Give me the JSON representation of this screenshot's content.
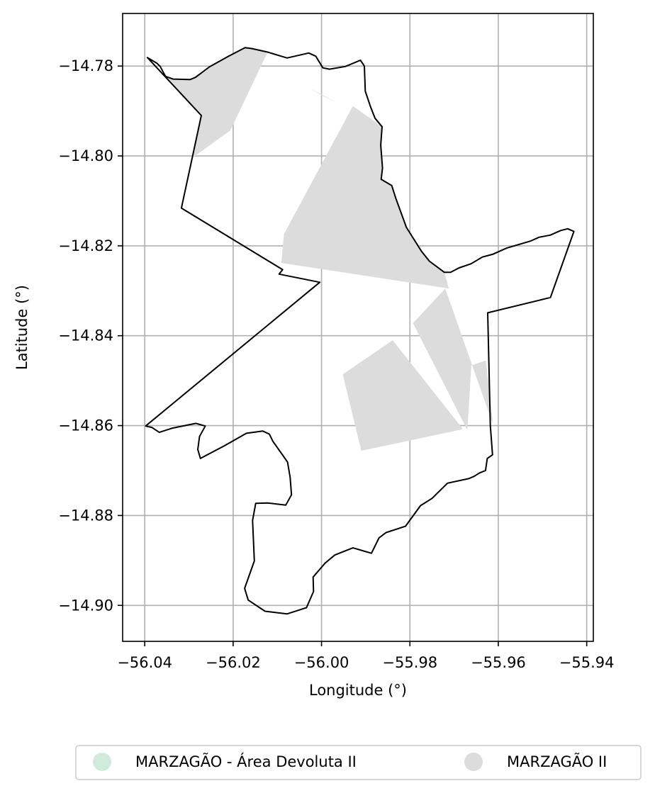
{
  "chart_data": {
    "type": "map",
    "xlabel": "Longitude (°)",
    "ylabel": "Latitude (°)",
    "xlim": [
      -56.045,
      -55.9385
    ],
    "ylim": [
      -14.908,
      -14.7683
    ],
    "xticks": [
      -56.04,
      -56.02,
      -56.0,
      -55.98,
      -55.96,
      -55.94
    ],
    "xtick_labels": [
      "−56.04",
      "−56.02",
      "−56.00",
      "−55.98",
      "−55.96",
      "−55.94"
    ],
    "yticks": [
      -14.78,
      -14.8,
      -14.82,
      -14.84,
      -14.86,
      -14.88,
      -14.9
    ],
    "ytick_labels": [
      "−14.78",
      "−14.80",
      "−14.82",
      "−14.84",
      "−14.86",
      "−14.88",
      "−14.90"
    ],
    "grid": true,
    "boundary": {
      "name": "municipality boundary",
      "color": "#000000",
      "coords": [
        [
          -56.0394,
          -14.7781
        ],
        [
          -56.0372,
          -14.7794
        ],
        [
          -56.0365,
          -14.7801
        ],
        [
          -56.0353,
          -14.7823
        ],
        [
          -56.0336,
          -14.7829
        ],
        [
          -56.0297,
          -14.783
        ],
        [
          -56.0285,
          -14.7825
        ],
        [
          -56.0254,
          -14.7802
        ],
        [
          -56.0212,
          -14.7779
        ],
        [
          -56.0173,
          -14.7759
        ],
        [
          -56.0158,
          -14.7761
        ],
        [
          -56.0122,
          -14.7769
        ],
        [
          -56.0078,
          -14.7782
        ],
        [
          -56.0029,
          -14.7771
        ],
        [
          -56.0013,
          -14.7778
        ],
        [
          -55.9997,
          -14.7804
        ],
        [
          -55.9982,
          -14.7807
        ],
        [
          -55.9946,
          -14.7801
        ],
        [
          -55.9912,
          -14.7787
        ],
        [
          -55.9903,
          -14.78
        ],
        [
          -55.9901,
          -14.7856
        ],
        [
          -55.9889,
          -14.7891
        ],
        [
          -55.9879,
          -14.7916
        ],
        [
          -55.9863,
          -14.7935
        ],
        [
          -55.9866,
          -14.7976
        ],
        [
          -55.9862,
          -14.8027
        ],
        [
          -55.9865,
          -14.8052
        ],
        [
          -55.9841,
          -14.8066
        ],
        [
          -55.9832,
          -14.8094
        ],
        [
          -55.9808,
          -14.8159
        ],
        [
          -55.979,
          -14.8187
        ],
        [
          -55.9774,
          -14.8212
        ],
        [
          -55.9756,
          -14.8234
        ],
        [
          -55.9722,
          -14.8259
        ],
        [
          -55.9708,
          -14.8259
        ],
        [
          -55.9689,
          -14.8249
        ],
        [
          -55.9662,
          -14.824
        ],
        [
          -55.9636,
          -14.8225
        ],
        [
          -55.9613,
          -14.8219
        ],
        [
          -55.9581,
          -14.8205
        ],
        [
          -55.9526,
          -14.8189
        ],
        [
          -55.9508,
          -14.8181
        ],
        [
          -55.9482,
          -14.8176
        ],
        [
          -55.9459,
          -14.8166
        ],
        [
          -55.9443,
          -14.8162
        ],
        [
          -55.9429,
          -14.8168
        ],
        [
          -55.9482,
          -14.8315
        ],
        [
          -55.9624,
          -14.8349
        ],
        [
          -55.9618,
          -14.86
        ],
        [
          -55.9613,
          -14.8665
        ],
        [
          -55.9625,
          -14.8673
        ],
        [
          -55.9629,
          -14.87
        ],
        [
          -55.9642,
          -14.8705
        ],
        [
          -55.9655,
          -14.8713
        ],
        [
          -55.9667,
          -14.8718
        ],
        [
          -55.9715,
          -14.8728
        ],
        [
          -55.975,
          -14.8762
        ],
        [
          -55.9776,
          -14.8778
        ],
        [
          -55.981,
          -14.8824
        ],
        [
          -55.9854,
          -14.8838
        ],
        [
          -55.987,
          -14.885
        ],
        [
          -55.9887,
          -14.8884
        ],
        [
          -55.9929,
          -14.8872
        ],
        [
          -55.997,
          -14.8888
        ],
        [
          -55.9992,
          -14.8906
        ],
        [
          -56.0019,
          -14.8937
        ],
        [
          -56.0018,
          -14.8969
        ],
        [
          -56.0034,
          -14.9005
        ],
        [
          -56.0078,
          -14.9019
        ],
        [
          -56.0128,
          -14.9013
        ],
        [
          -56.0166,
          -14.8988
        ],
        [
          -56.0174,
          -14.8962
        ],
        [
          -56.0152,
          -14.8901
        ],
        [
          -56.0156,
          -14.8811
        ],
        [
          -56.0149,
          -14.8773
        ],
        [
          -56.0122,
          -14.8772
        ],
        [
          -56.0081,
          -14.8777
        ],
        [
          -56.0068,
          -14.8754
        ],
        [
          -56.0071,
          -14.8715
        ],
        [
          -56.0077,
          -14.8681
        ],
        [
          -56.011,
          -14.8635
        ],
        [
          -56.0118,
          -14.8619
        ],
        [
          -56.0133,
          -14.8612
        ],
        [
          -56.017,
          -14.8617
        ],
        [
          -56.022,
          -14.8645
        ],
        [
          -56.0274,
          -14.8673
        ],
        [
          -56.028,
          -14.8653
        ],
        [
          -56.0276,
          -14.8624
        ],
        [
          -56.0263,
          -14.8601
        ],
        [
          -56.0284,
          -14.8595
        ],
        [
          -56.0304,
          -14.8599
        ],
        [
          -56.0339,
          -14.8606
        ],
        [
          -56.0367,
          -14.8615
        ],
        [
          -56.0384,
          -14.8604
        ],
        [
          -56.0398,
          -14.8601
        ],
        [
          -56.0004,
          -14.8281
        ],
        [
          -56.0096,
          -14.8263
        ],
        [
          -56.0088,
          -14.8253
        ],
        [
          -56.0317,
          -14.8116
        ],
        [
          -56.0272,
          -14.791
        ],
        [
          -56.0394,
          -14.7781
        ]
      ]
    },
    "series": [
      {
        "name": "MARZAGÃO - Área Devoluta II",
        "color": "#d0ebdc",
        "polygons": []
      },
      {
        "name": "MARZAGÃO II",
        "color": "#dcdcdc",
        "polygons": [
          [
            [
              -56.0394,
              -14.7781
            ],
            [
              -56.0272,
              -14.791
            ],
            [
              -56.0292,
              -14.8004
            ],
            [
              -56.0206,
              -14.7943
            ],
            [
              -56.0122,
              -14.7769
            ],
            [
              -56.0173,
              -14.7759
            ],
            [
              -56.0254,
              -14.7802
            ],
            [
              -56.0297,
              -14.783
            ],
            [
              -56.0336,
              -14.7829
            ],
            [
              -56.0353,
              -14.7823
            ]
          ],
          [
            [
              -55.9929,
              -14.7889
            ],
            [
              -55.9863,
              -14.7935
            ],
            [
              -55.9866,
              -14.7976
            ],
            [
              -55.9862,
              -14.8027
            ],
            [
              -55.9865,
              -14.8052
            ],
            [
              -55.9841,
              -14.8066
            ],
            [
              -55.9808,
              -14.8159
            ],
            [
              -55.9756,
              -14.8234
            ],
            [
              -55.9722,
              -14.8259
            ],
            [
              -55.9712,
              -14.8295
            ],
            [
              -56.0091,
              -14.8238
            ],
            [
              -56.0085,
              -14.8174
            ]
          ],
          [
            [
              -56.0026,
              -14.7849
            ],
            [
              -55.9965,
              -14.7882
            ],
            [
              -56.0,
              -14.7865
            ]
          ],
          [
            [
              -55.972,
              -14.8295
            ],
            [
              -55.9793,
              -14.8372
            ],
            [
              -55.967,
              -14.861
            ],
            [
              -55.9661,
              -14.8466
            ],
            [
              -55.9628,
              -14.8455
            ],
            [
              -55.9612,
              -14.8598
            ]
          ],
          [
            [
              -55.9952,
              -14.8486
            ],
            [
              -55.9839,
              -14.841
            ],
            [
              -55.968,
              -14.8608
            ],
            [
              -55.991,
              -14.8656
            ]
          ]
        ]
      }
    ],
    "legend": {
      "placement": "bottom",
      "entries": [
        "MARZAGÃO - Área Devoluta II",
        "MARZAGÃO II"
      ]
    }
  }
}
